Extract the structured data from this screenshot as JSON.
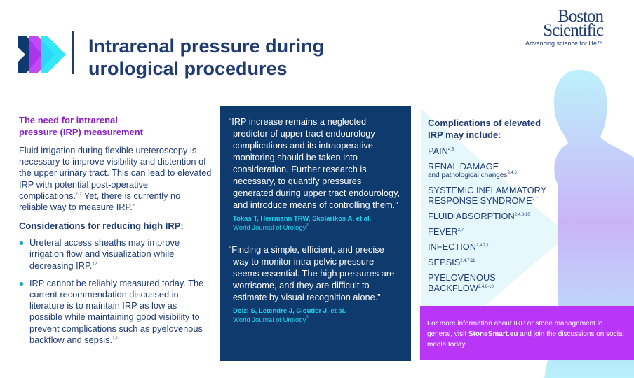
{
  "header": {
    "title_line1": "Intrarenal pressure during",
    "title_line2": "urological procedures"
  },
  "brand": {
    "name_line1": "Boston",
    "name_line2": "Scientific",
    "tagline": "Advancing science for life™"
  },
  "left": {
    "heading1_line1": "The need for intrarenal",
    "heading1_line2": "pressure (IRP) measurement",
    "intro": "Fluid irrigation during flexible ureteroscopy is necessary to improve visibility and distention of the upper urinary tract. This can lead to elevated IRP with potential post-operative complications.",
    "intro_sup": "1,2",
    "intro2": " Yet, there is currently no reliable way to measure IRP.\"",
    "heading2": "Considerations for reducing high IRP:",
    "bullets": [
      {
        "text": "Ureteral access sheaths may improve irrigation flow and visualization while decreasing IRP.",
        "sup": "12"
      },
      {
        "text": "IRP cannot be reliably measured today. The current recommendation discussed in literature is to maintain IRP as low as possible while maintaining good visibility to prevent complications such as pyelovenous backflow and sepsis.",
        "sup": "2,11"
      }
    ]
  },
  "quotes": [
    {
      "text": "“IRP increase remains a neglected predictor of upper tract endourology complications and its intraoperative monitoring should be taken into consideration. Further research is necessary, to quantify pressures generated during upper tract endourology, and introduce means of controlling them.”",
      "authors": "Tokas T, Herrmann TRW, Skolarikos A, et al.",
      "journal": "World Journal of Urology",
      "sup": "2"
    },
    {
      "text": "“Finding a simple, efficient, and precise way to monitor intra pelvic pressure seems essential. The high pressures are worrisome, and they are difficult to estimate by visual recognition alone.”",
      "authors": "Doizi S, Letendre J, Cloutier J, et al.",
      "journal": "World Journal of Urology",
      "sup": "3"
    }
  ],
  "complications": {
    "heading_line1": "Complications of elevated",
    "heading_line2": "IRP may include:",
    "items": [
      {
        "label": "PAIN",
        "sup": "4,5"
      },
      {
        "label": "RENAL DAMAGE",
        "sub": "and pathological changes",
        "sup": "3,4,6"
      },
      {
        "label": "SYSTEMIC INFLAMMATORY RESPONSE SYNDROME",
        "sup": "2,7"
      },
      {
        "label": "FLUID ABSORPTION",
        "sup": "2,4,8-10"
      },
      {
        "label": "FEVER",
        "sup": "2,7"
      },
      {
        "label": "INFECTION",
        "sup": "2,4,7,11"
      },
      {
        "label": "SEPSIS",
        "sup": "2,4,7,11"
      },
      {
        "label": "PYELOVENOUS BACKFLOW",
        "sup": "2,4,8-10"
      }
    ]
  },
  "info": {
    "text1": "For more information about IRP or stone management in general, visit ",
    "link": "StoneSmart.eu",
    "text2": " and join the discussions on social media today."
  },
  "colors": {
    "navy": "#0f3a6e",
    "purple": "#b936f7",
    "cyan": "#1dd3ec"
  }
}
